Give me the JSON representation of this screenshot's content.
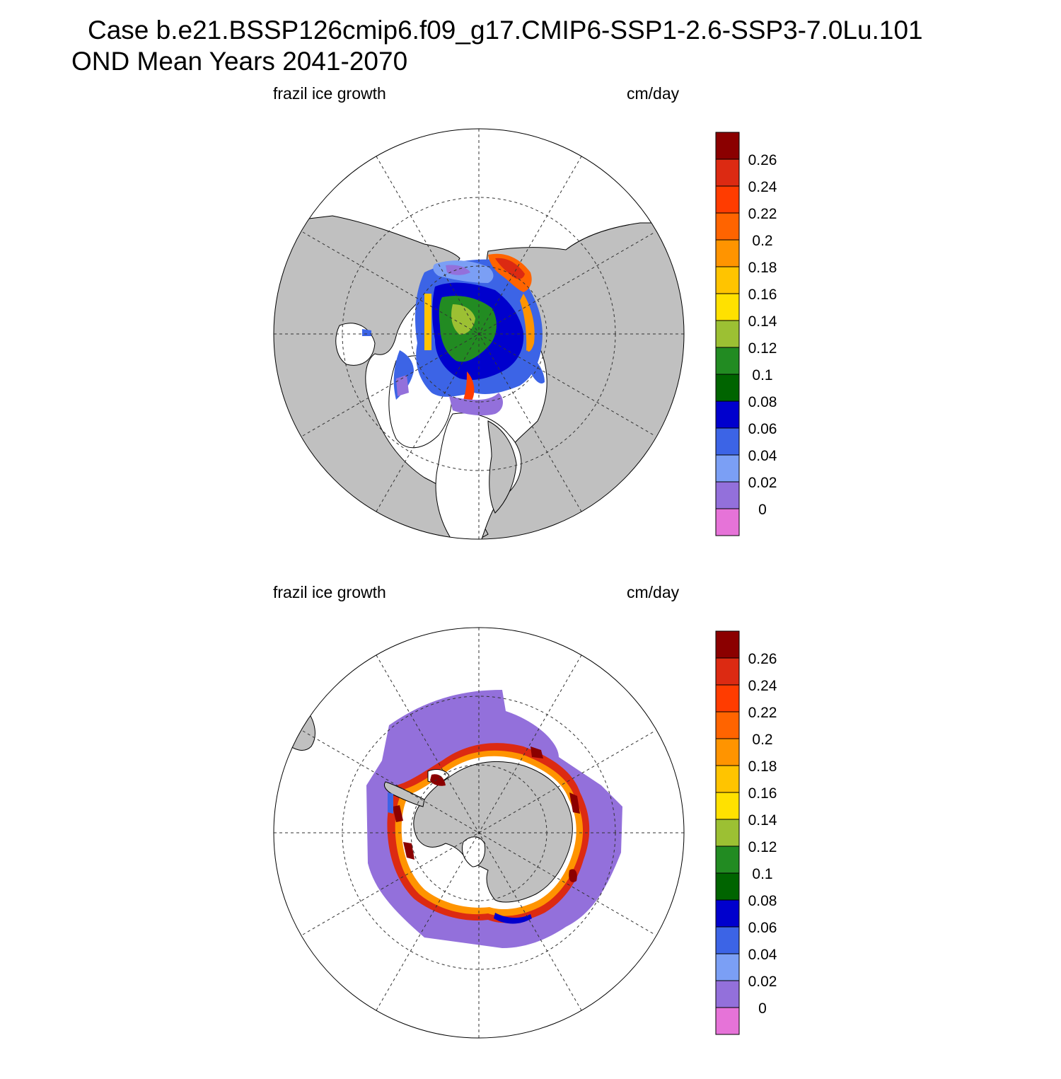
{
  "header": {
    "line1": "Case b.e21.BSSP126cmip6.f09_g17.CMIP6-SSP1-2.6-SSP3-7.0Lu.101",
    "line2": "OND Mean   Years 2041-2070"
  },
  "panels": [
    {
      "hemisphere": "north",
      "variable_label": "frazil ice growth",
      "units_label": "cm/day"
    },
    {
      "hemisphere": "south",
      "variable_label": "frazil ice growth",
      "units_label": "cm/day"
    }
  ],
  "colorbar": {
    "labels": [
      "0.26",
      "0.24",
      "0.22",
      "0.2",
      "0.18",
      "0.16",
      "0.14",
      "0.12",
      "0.1",
      "0.08",
      "0.06",
      "0.04",
      "0.02",
      "0"
    ],
    "colors_top_to_bottom": [
      "#8b0000",
      "#dc2a12",
      "#ff3c00",
      "#ff6400",
      "#ff9400",
      "#ffc400",
      "#ffe100",
      "#9cc033",
      "#228b22",
      "#006400",
      "#0000cd",
      "#3c64e6",
      "#7b9ff5",
      "#9370db",
      "#e673d8"
    ]
  },
  "map_colors": {
    "land": "#c0c0c0",
    "ocean_no_ice": "#ffffff"
  }
}
